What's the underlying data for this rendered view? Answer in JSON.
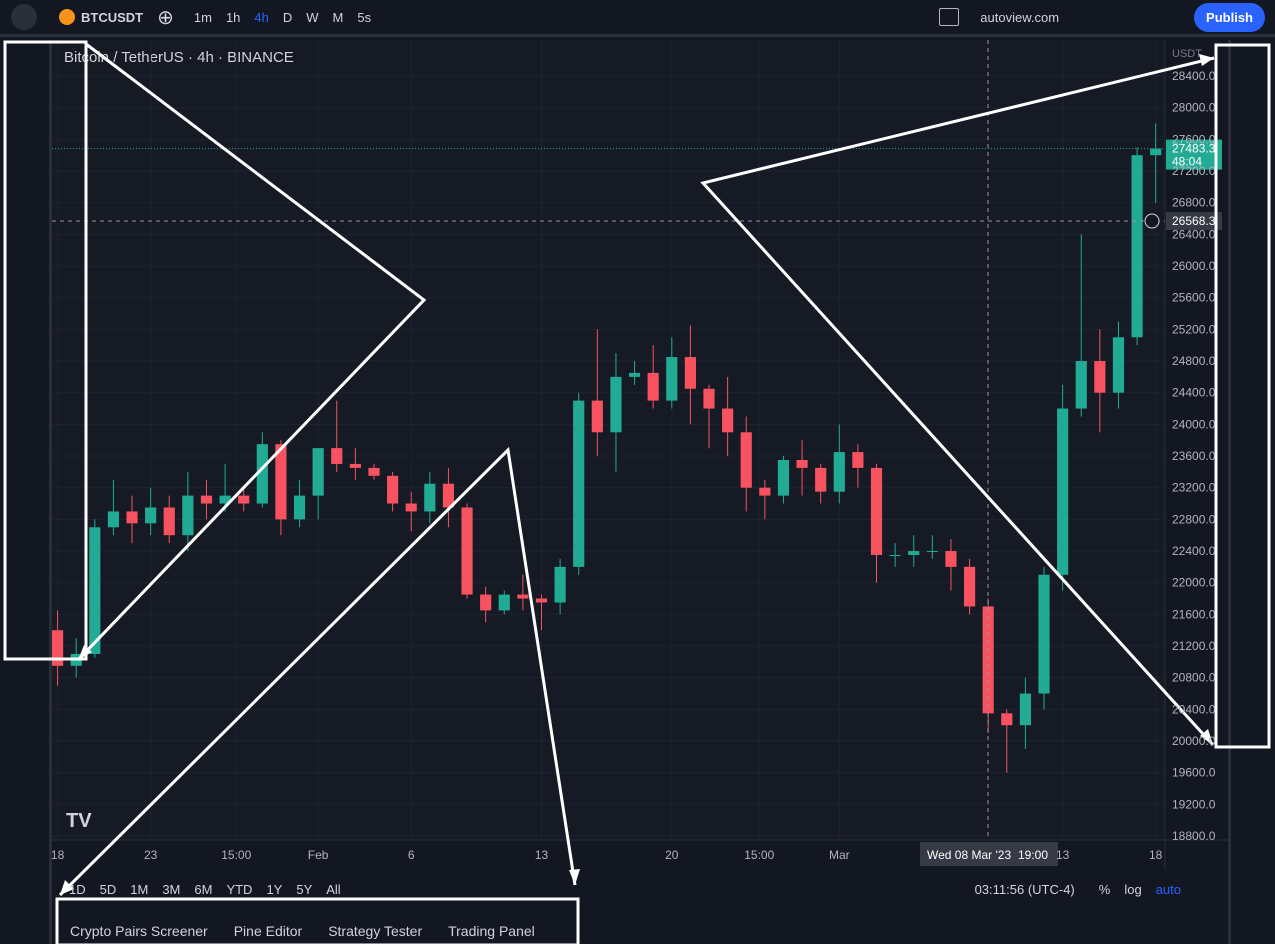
{
  "top_bar": {
    "symbol": "BTCUSDT",
    "intervals": [
      "1m",
      "1h",
      "4h",
      "D",
      "W",
      "M",
      "5s"
    ],
    "layout_name": "autoview.com",
    "publish": "Publish"
  },
  "chart_data": {
    "type": "candlestick",
    "title": "Bitcoin / TetherUS · 4h · BINANCE",
    "currency": "USDT",
    "up_color": "#22ab94",
    "down_color": "#f7525f",
    "grid": true,
    "x": [
      0,
      1,
      2,
      3,
      4,
      5,
      6,
      7,
      8,
      9,
      10,
      11,
      12,
      13,
      14,
      15,
      16,
      17,
      18,
      19,
      20,
      21,
      22,
      23,
      24,
      25,
      26,
      27,
      28,
      29,
      30,
      31,
      32,
      33,
      34,
      35,
      36,
      37,
      38,
      39,
      40,
      41,
      42,
      43,
      44,
      45,
      46,
      47,
      48,
      49,
      50,
      51,
      52,
      53,
      54,
      55,
      56,
      57,
      58,
      59
    ],
    "open": [
      21400,
      20950,
      21100,
      22700,
      22900,
      22750,
      22950,
      22600,
      23100,
      23000,
      23100,
      23000,
      23750,
      22800,
      23100,
      23700,
      23500,
      23450,
      23350,
      23000,
      22900,
      23250,
      22950,
      21850,
      21650,
      21850,
      21800,
      21750,
      22200,
      24300,
      23900,
      24600,
      24650,
      24300,
      24850,
      24450,
      24200,
      23900,
      23200,
      23100,
      23550,
      23450,
      23150,
      23650,
      23450,
      22350,
      22350,
      22400,
      22400,
      22200,
      21700,
      20350,
      20200,
      20600,
      22100,
      24200,
      24800,
      24400,
      25100,
      27400
    ],
    "high": [
      21650,
      21300,
      22800,
      23300,
      23100,
      23200,
      23100,
      23400,
      23300,
      23500,
      23200,
      23900,
      23800,
      23300,
      23700,
      24300,
      23700,
      23500,
      23400,
      23150,
      23400,
      23450,
      23000,
      21950,
      21900,
      22100,
      21850,
      22300,
      24400,
      25200,
      24900,
      24800,
      25000,
      25100,
      25250,
      24500,
      24600,
      24100,
      23300,
      23600,
      23800,
      23500,
      24000,
      23750,
      23500,
      22500,
      22600,
      22600,
      22550,
      22300,
      21800,
      20400,
      20800,
      22200,
      24500,
      26400,
      25200,
      25300,
      27500,
      27800
    ],
    "low": [
      20700,
      20800,
      21050,
      22600,
      22500,
      22600,
      22500,
      22400,
      22800,
      22900,
      22900,
      22950,
      22600,
      22700,
      22800,
      23400,
      23300,
      23300,
      22900,
      22650,
      22750,
      22700,
      21800,
      21500,
      21600,
      21650,
      21400,
      21600,
      22100,
      23600,
      23400,
      24500,
      24200,
      24200,
      24000,
      23700,
      23600,
      22900,
      22800,
      23000,
      23100,
      23000,
      23000,
      23200,
      22000,
      22200,
      22200,
      22300,
      21900,
      21600,
      20100,
      19600,
      19900,
      20400,
      21900,
      24100,
      23900,
      24200,
      25000,
      26800
    ],
    "close": [
      20950,
      21100,
      22700,
      22900,
      22750,
      22950,
      22600,
      23100,
      23000,
      23100,
      23000,
      23750,
      22800,
      23100,
      23700,
      23500,
      23450,
      23350,
      23000,
      22900,
      23250,
      22950,
      21850,
      21650,
      21850,
      21800,
      21750,
      22200,
      24300,
      23900,
      24600,
      24650,
      24300,
      24850,
      24450,
      24200,
      23900,
      23200,
      23100,
      23550,
      23450,
      23150,
      23650,
      23450,
      22350,
      22350,
      22400,
      22400,
      22200,
      21700,
      20350,
      20200,
      20600,
      22100,
      24200,
      24800,
      24400,
      25100,
      27400,
      27483.3
    ],
    "xlim": [
      -0.3,
      59.5
    ],
    "xticks": [
      {
        "value": 0,
        "label": "18"
      },
      {
        "value": 5,
        "label": "23"
      },
      {
        "value": 9.6,
        "label": "15:00"
      },
      {
        "value": 14,
        "label": "Feb"
      },
      {
        "value": 19,
        "label": "6"
      },
      {
        "value": 26,
        "label": "13"
      },
      {
        "value": 33,
        "label": "20"
      },
      {
        "value": 37.7,
        "label": "15:00"
      },
      {
        "value": 42,
        "label": "Mar"
      },
      {
        "value": 54,
        "label": "13"
      },
      {
        "value": 59,
        "label": "18"
      }
    ],
    "ylim": [
      18750,
      28855
    ],
    "yticks": [
      {
        "value": 18800,
        "label": "18800.0"
      },
      {
        "value": 19200,
        "label": "19200.0"
      },
      {
        "value": 19600,
        "label": "19600.0"
      },
      {
        "value": 20000,
        "label": "20000.0"
      },
      {
        "value": 20400,
        "label": "20400.0"
      },
      {
        "value": 20800,
        "label": "20800.0"
      },
      {
        "value": 21200,
        "label": "21200.0"
      },
      {
        "value": 21600,
        "label": "21600.0"
      },
      {
        "value": 22000,
        "label": "22000.0"
      },
      {
        "value": 22400,
        "label": "22400.0"
      },
      {
        "value": 22800,
        "label": "22800.0"
      },
      {
        "value": 23200,
        "label": "23200.0"
      },
      {
        "value": 23600,
        "label": "23600.0"
      },
      {
        "value": 24000,
        "label": "24000.0"
      },
      {
        "value": 24400,
        "label": "24400.0"
      },
      {
        "value": 24800,
        "label": "24800.0"
      },
      {
        "value": 25200,
        "label": "25200.0"
      },
      {
        "value": 25600,
        "label": "25600.0"
      },
      {
        "value": 26000,
        "label": "26000.0"
      },
      {
        "value": 26400,
        "label": "26400.0"
      },
      {
        "value": 26800,
        "label": "26800.0"
      },
      {
        "value": 27200,
        "label": "27200.0"
      },
      {
        "value": 27600,
        "label": "27600.0"
      },
      {
        "value": 28000,
        "label": "28000.0"
      },
      {
        "value": 28400,
        "label": "28400.0"
      }
    ],
    "last_price": 27483.3,
    "countdown": "48:04",
    "crosshair_price": 26568.3,
    "crosshair_time": "Wed 08 Mar '23",
    "crosshair_hour": "19:00"
  },
  "range_bar": {
    "ranges": [
      "1D",
      "5D",
      "1M",
      "3M",
      "6M",
      "YTD",
      "1Y",
      "5Y",
      "All"
    ],
    "clock": "03:11:56 (UTC-4)",
    "options": [
      "%",
      "log",
      "auto"
    ]
  },
  "bottom_tabs": [
    "Crypto Pairs Screener",
    "Pine Editor",
    "Strategy Tester",
    "Trading Panel"
  ]
}
